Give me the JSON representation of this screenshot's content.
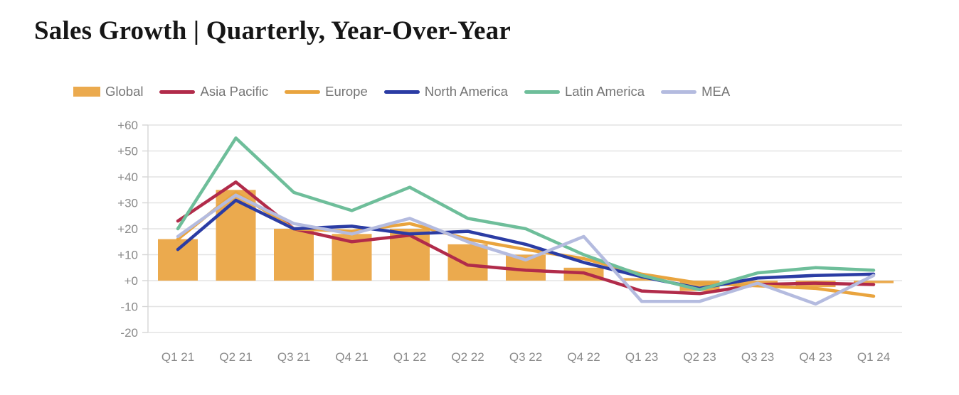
{
  "title": "Sales Growth | Quarterly, Year-Over-Year",
  "colors": {
    "title_text": "#161616",
    "legend_text": "#747474",
    "tick_text": "#8a8a8a",
    "grid": "#e4e4e4",
    "axis": "#d6d6d6",
    "background": "#ffffff"
  },
  "chart_data": {
    "type": "combo",
    "title": "Sales Growth | Quarterly, Year-Over-Year",
    "xlabel": "",
    "ylabel": "",
    "grid": true,
    "legend_position": "top",
    "ylim": [
      -20,
      60
    ],
    "y_ticks": [
      {
        "value": 60,
        "label": "+60"
      },
      {
        "value": 50,
        "label": "+50"
      },
      {
        "value": 40,
        "label": "+40"
      },
      {
        "value": 30,
        "label": "+30"
      },
      {
        "value": 20,
        "label": "+20"
      },
      {
        "value": 10,
        "label": "+10"
      },
      {
        "value": 0,
        "label": "+0"
      },
      {
        "value": -10,
        "label": "-10"
      },
      {
        "value": -20,
        "label": "-20"
      }
    ],
    "categories": [
      "Q1 21",
      "Q2 21",
      "Q3 21",
      "Q4 21",
      "Q1 22",
      "Q2 22",
      "Q3 22",
      "Q4 22",
      "Q1 23",
      "Q2 23",
      "Q3 23",
      "Q4 23",
      "Q1 24"
    ],
    "series": [
      {
        "name": "Global",
        "type": "bar",
        "color": "#ebaa4e",
        "values": [
          16,
          35,
          20,
          18,
          20,
          14,
          10,
          5,
          1,
          -4,
          -2,
          -2.5,
          -1
        ]
      },
      {
        "name": "Asia Pacific",
        "type": "line",
        "color": "#b12b4a",
        "values": [
          23,
          38,
          20,
          15,
          17.5,
          6,
          4,
          3,
          -4,
          -5,
          -1.5,
          -1,
          -1.5
        ]
      },
      {
        "name": "Europe",
        "type": "line",
        "color": "#e9a43e",
        "values": [
          16,
          34,
          20,
          19,
          22,
          16,
          12,
          8.5,
          2.5,
          -1,
          -2,
          -3,
          -6
        ]
      },
      {
        "name": "North America",
        "type": "line",
        "color": "#2b3ca4",
        "values": [
          12,
          31,
          20,
          21,
          18,
          19,
          14,
          7,
          1.5,
          -3,
          1,
          2,
          2.5
        ]
      },
      {
        "name": "Latin America",
        "type": "line",
        "color": "#6ebe9a",
        "values": [
          20,
          55,
          34,
          27,
          36,
          24,
          20,
          10,
          2,
          -3.5,
          3,
          5,
          4
        ]
      },
      {
        "name": "MEA",
        "type": "line",
        "color": "#b4bbdf",
        "values": [
          17,
          33,
          22,
          18,
          24,
          15,
          8,
          17,
          -8,
          -8,
          -1,
          -9,
          2
        ]
      }
    ]
  }
}
